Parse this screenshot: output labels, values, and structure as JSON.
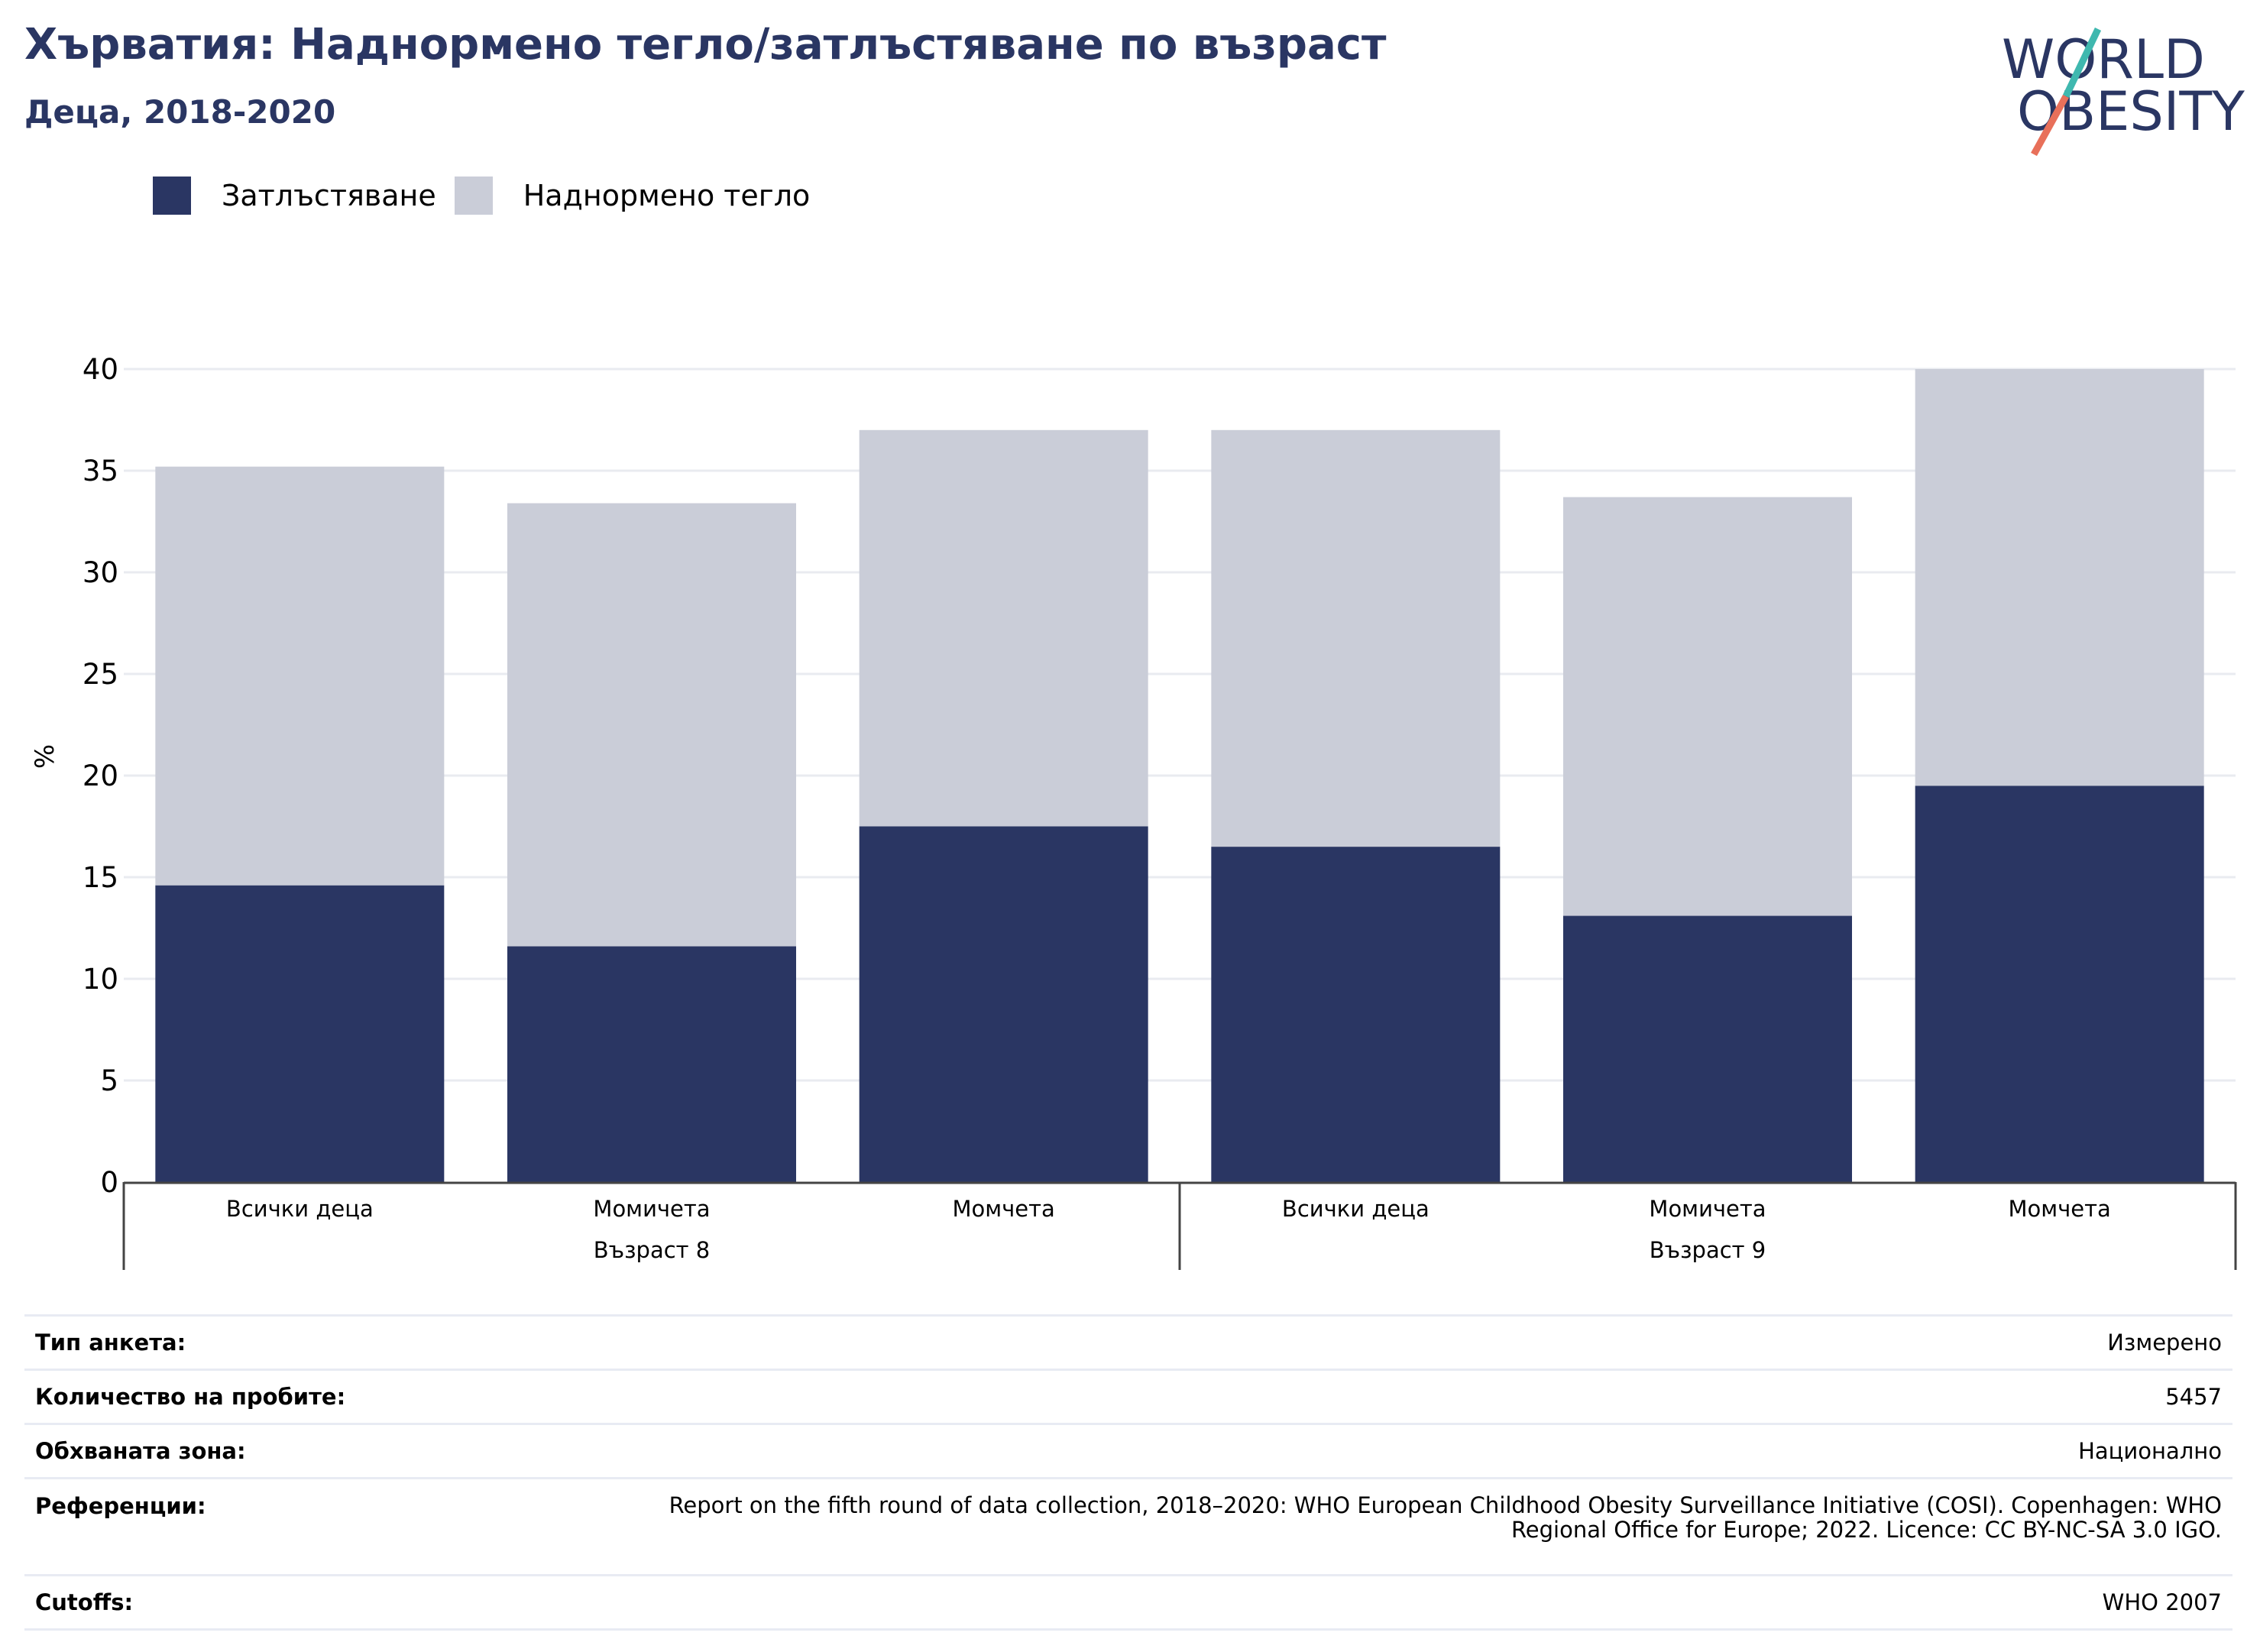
{
  "header": {
    "title": "Хърватия: Наднормено тегло/затлъстяване по възраст",
    "subtitle": "Деца, 2018-2020"
  },
  "logo": {
    "line1": "WORLD",
    "line2": "OBESITY"
  },
  "colors": {
    "obesity": "#2a3663",
    "overweight": "#cacdd8",
    "title": "#2a3663",
    "grid": "#e9ebf0",
    "logo_teal": "#3fb8af",
    "logo_coral": "#e8705a"
  },
  "chart_data": {
    "type": "bar",
    "stacked": true,
    "ylabel": "%",
    "ylim": [
      0,
      40
    ],
    "yticks": [
      0,
      5,
      10,
      15,
      20,
      25,
      30,
      35,
      40
    ],
    "grid": true,
    "legend_position": "top-left",
    "categories": [
      "Всички деца",
      "Момичета",
      "Момчета",
      "Всички деца",
      "Момичета",
      "Момчета"
    ],
    "groups": [
      {
        "label": "Възраст 8",
        "categories": [
          0,
          1,
          2
        ]
      },
      {
        "label": "Възраст 9",
        "categories": [
          3,
          4,
          5
        ]
      }
    ],
    "series": [
      {
        "name": "Затлъстяване",
        "values": [
          14.6,
          11.6,
          17.5,
          16.5,
          13.1,
          19.5
        ]
      },
      {
        "name": "Наднормено тегло",
        "values": [
          20.6,
          21.8,
          19.5,
          20.5,
          20.6,
          20.5
        ]
      }
    ]
  },
  "info_table": [
    {
      "key": "Тип анкета:",
      "value": "Измерено"
    },
    {
      "key": "Количество на пробите:",
      "value": "5457"
    },
    {
      "key": "Обхваната зона:",
      "value": "Национално"
    },
    {
      "key": "Референции:",
      "value_line1": "Report on the fifth round of data collection, 2018–2020: WHO European Childhood Obesity Surveillance Initiative (COSI). Copenhagen: WHO",
      "value_line2": "Regional Office for Europe; 2022. Licence: CC BY-NC-SA 3.0 IGO."
    },
    {
      "key": "Cutoffs:",
      "value": "WHO 2007"
    }
  ]
}
